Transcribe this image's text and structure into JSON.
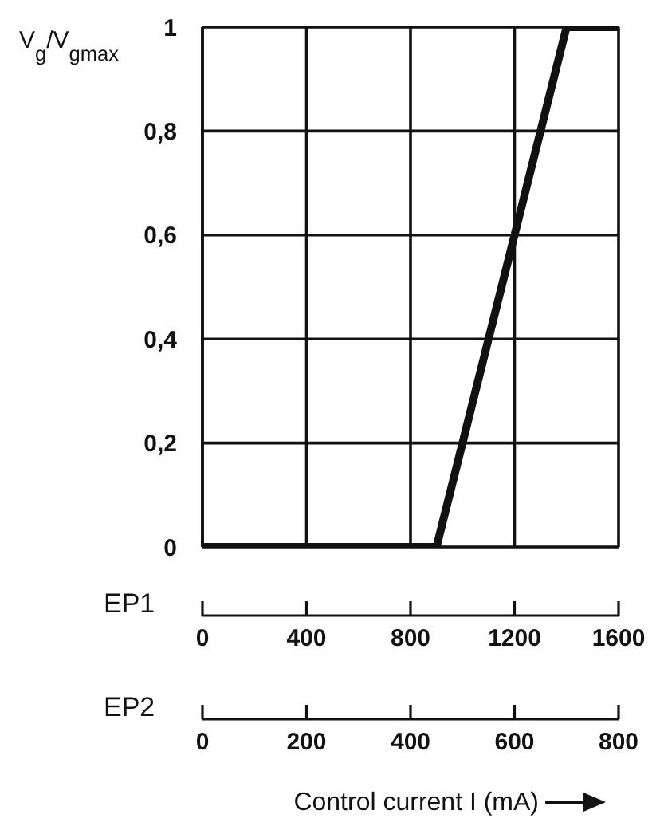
{
  "chart_data": {
    "type": "line",
    "ylabel": "V$_{g}$/V$_{gmax}$",
    "xlabel": "Control current I (mA)",
    "annotations": [
      "EP1",
      "EP2"
    ],
    "series": [
      {
        "color": "#111111",
        "x": [
          0,
          900,
          1400,
          1600
        ],
        "values": [
          0,
          0,
          1,
          1
        ]
      }
    ],
    "xlim": [
      0,
      1600
    ],
    "xticks": [
      0,
      400,
      800,
      1200,
      1600
    ],
    "x2lim": [
      0,
      800
    ],
    "x2ticks": [
      0,
      200,
      400,
      600,
      800
    ],
    "ylim": [
      0,
      1
    ],
    "yticks": [
      0,
      {
        "value": 0.2,
        "label": "0,2"
      },
      {
        "value": 0.4,
        "label": "0,4"
      },
      {
        "value": 0.6,
        "label": "0,6"
      },
      {
        "value": 0.8,
        "label": "0,8"
      },
      1
    ],
    "grid": true,
    "marker": "none",
    "line_style": "solid"
  }
}
